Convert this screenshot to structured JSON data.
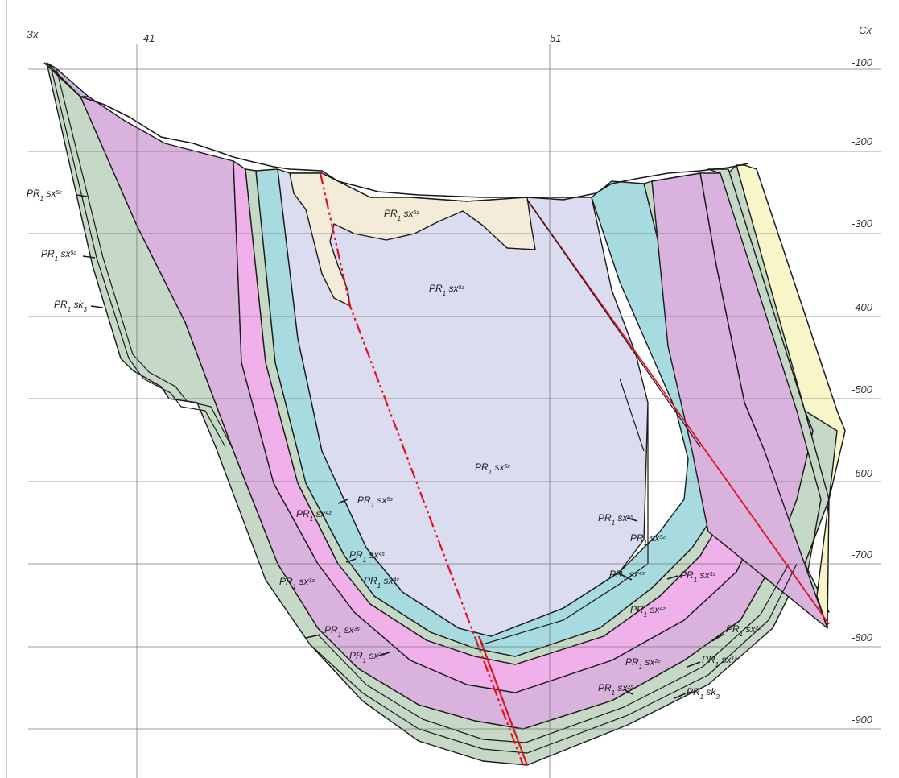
{
  "corners": {
    "left": "Зх",
    "right": "Сх"
  },
  "grid": {
    "columns": [
      "41",
      "51"
    ],
    "levels": [
      "-100",
      "-200",
      "-300",
      "-400",
      "-500",
      "-600",
      "-700",
      "-800",
      "-900"
    ]
  },
  "colors": {
    "grid": "#7a7a7a",
    "outline": "#1a1a1a",
    "fault": "#e0101c",
    "purple": "#d9b3de",
    "lavender": "#dcdcf0",
    "cyan": "#a8dbe0",
    "pink": "#f0b0ea",
    "sage": "#c6d9c6",
    "beige": "#f2ecd9",
    "yellow": "#f8f5c8",
    "mauve": "#c8b6d8"
  },
  "labels": [
    {
      "base": "PR",
      "sub": "1",
      "mid": " sx",
      "sup": "5г"
    },
    {
      "base": "PR",
      "sub": "1",
      "mid": " sx",
      "sup": "5г"
    },
    {
      "base": "PR",
      "sub": "1",
      "mid": " sx",
      "sup": "5г"
    },
    {
      "base": "PR",
      "sub": "1",
      "mid": " sx",
      "sup": "5г"
    },
    {
      "base": "PR",
      "sub": "1",
      "mid": " sx",
      "sup": "5г"
    },
    {
      "base": "PR",
      "sub": "1",
      "mid": " sk",
      "sub2": "3"
    },
    {
      "base": "PR",
      "sub": "1",
      "mid": " sx",
      "sup": "5s"
    },
    {
      "base": "PR",
      "sub": "1",
      "mid": " sx",
      "sup": "4г"
    },
    {
      "base": "PR",
      "sub": "1",
      "mid": " sx",
      "sup": "4s"
    },
    {
      "base": "PR",
      "sub": "1",
      "mid": " sx",
      "sup": "4г"
    },
    {
      "base": "PR",
      "sub": "1",
      "mid": " sx",
      "sup": "3г"
    },
    {
      "base": "PR",
      "sub": "1",
      "mid": " sx",
      "sup": "3s"
    },
    {
      "base": "PR",
      "sub": "1",
      "mid": " sx",
      "sup": "2s"
    },
    {
      "base": "PR",
      "sub": "1",
      "mid": " sx",
      "sup": "5s"
    },
    {
      "base": "PR",
      "sub": "1",
      "mid": " sx",
      "sup": "5г"
    },
    {
      "base": "PR",
      "sub": "1",
      "mid": " sx",
      "sup": "4s"
    },
    {
      "base": "PR",
      "sub": "1",
      "mid": " sx",
      "sup": "3s"
    },
    {
      "base": "PR",
      "sub": "1",
      "mid": " sx",
      "sup": "4г"
    },
    {
      "base": "PR",
      "sub": "1",
      "mid": " sx",
      "sup": "2г"
    },
    {
      "base": "PR",
      "sub": "1",
      "mid": " sx",
      "sup": "2г"
    },
    {
      "base": "PR",
      "sub": "1",
      "mid": " sx",
      "sup": "1г"
    },
    {
      "base": "PR",
      "sub": "1",
      "mid": " sx",
      "sup": "2s"
    },
    {
      "base": "PR",
      "sub": "1",
      "mid": " sk",
      "sub2": "3"
    }
  ]
}
